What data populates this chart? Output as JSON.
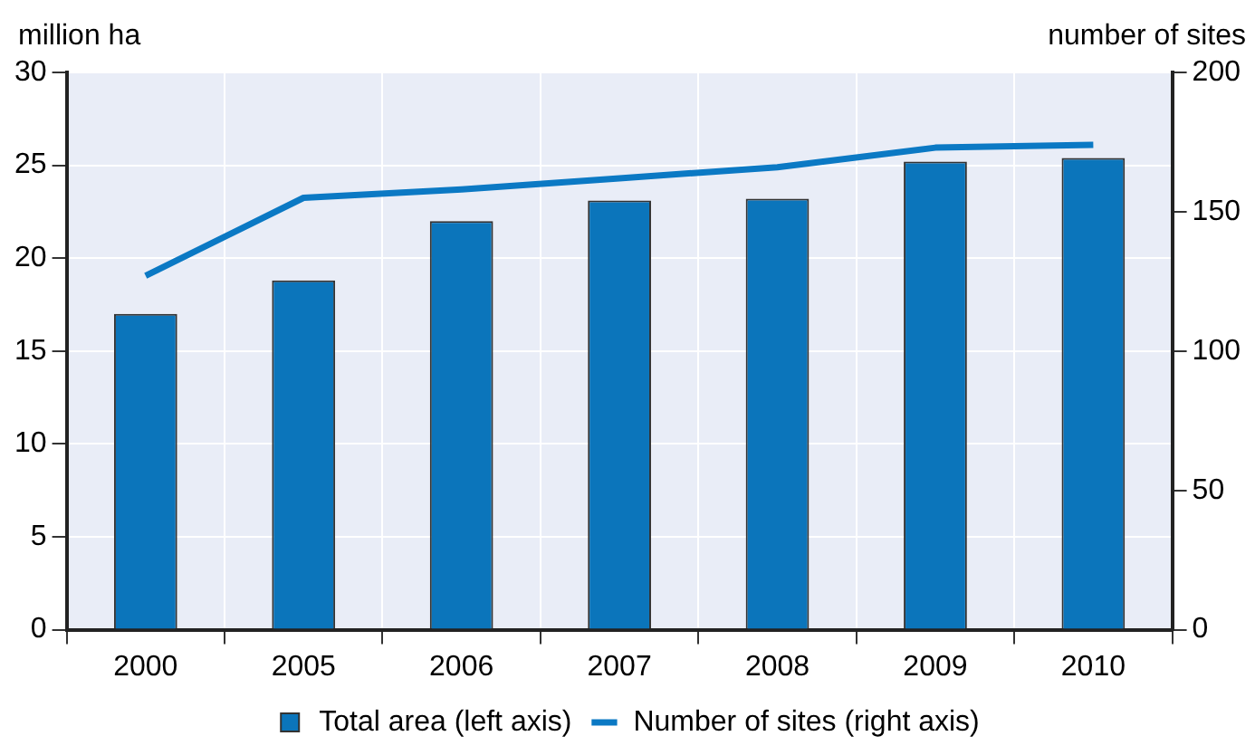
{
  "chart_data": {
    "type": "bar",
    "ylabel": "million ha",
    "y2label": "number of sites",
    "categories": [
      "2000",
      "2005",
      "2006",
      "2007",
      "2008",
      "2009",
      "2010"
    ],
    "series": [
      {
        "name": "Total area (left axis)",
        "color": "#0b75bb",
        "values": [
          17.0,
          18.8,
          22.0,
          23.1,
          23.2,
          25.2,
          25.4
        ]
      },
      {
        "name": "Number of sites (right axis)",
        "type": "line",
        "axis": "y2",
        "color": "#0b79c4",
        "values": [
          127,
          155,
          158,
          162,
          166,
          173,
          174
        ]
      }
    ],
    "ylim": [
      0,
      30
    ],
    "yticks": [
      0,
      5,
      10,
      15,
      20,
      25,
      30
    ],
    "y2lim": [
      0,
      200
    ],
    "y2ticks": [
      0,
      50,
      100,
      150,
      200
    ],
    "grid": true,
    "legend": "bottom",
    "marker": "none"
  }
}
